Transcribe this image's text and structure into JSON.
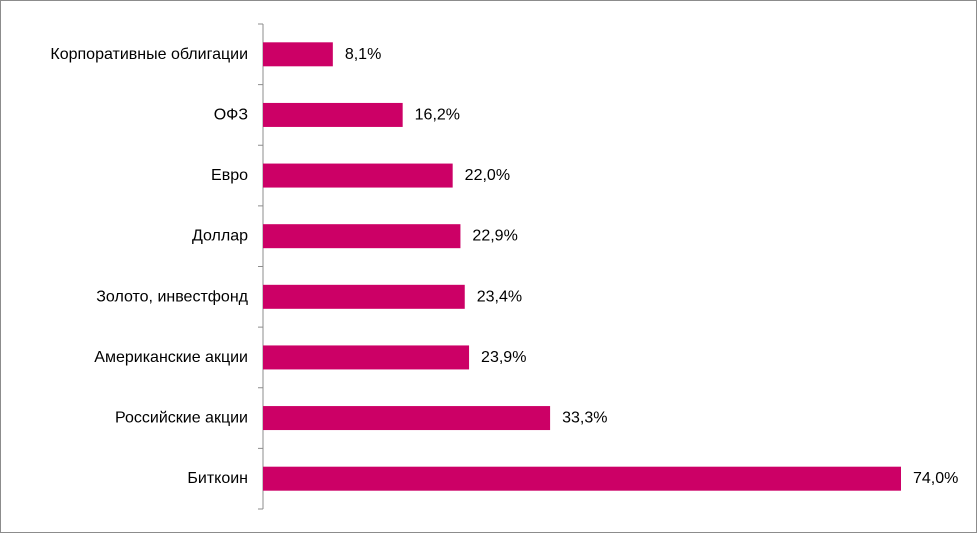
{
  "chart_data": {
    "type": "bar",
    "orientation": "horizontal",
    "categories": [
      "Корпоративные облигации",
      "ОФЗ",
      "Евро",
      "Доллар",
      "Золото,  инвестфонд",
      "Американские акции",
      "Российские акции",
      "Биткоин"
    ],
    "values": [
      8.1,
      16.2,
      22.0,
      22.9,
      23.4,
      23.9,
      33.3,
      74.0
    ],
    "value_labels": [
      "8,1%",
      "16,2%",
      "22,0%",
      "22,9%",
      "23,4%",
      "23,9%",
      "33,3%",
      "74,0%"
    ],
    "xlim": [
      0,
      74.0
    ],
    "grid": false,
    "legend": "none",
    "bar_color": "#cc0066"
  }
}
